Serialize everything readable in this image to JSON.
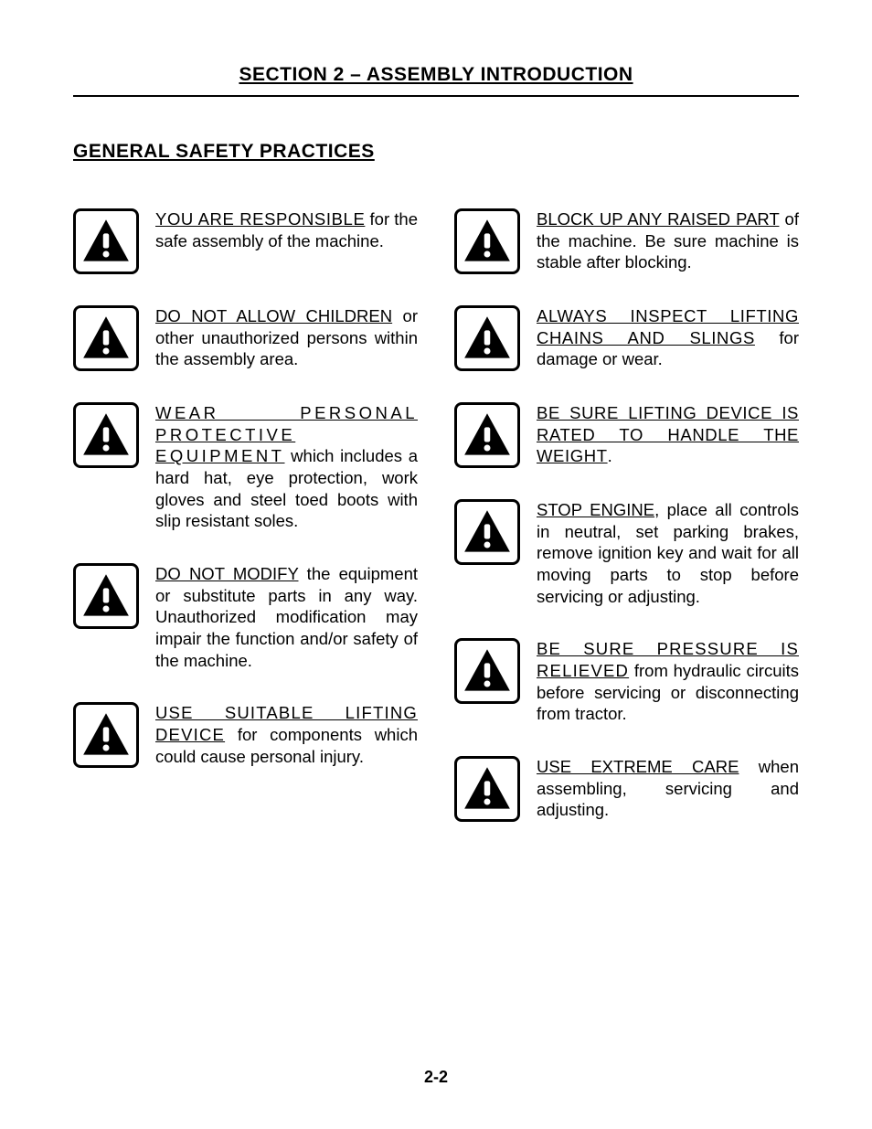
{
  "header": {
    "section_title": "SECTION 2 – ASSEMBLY INTRODUCTION",
    "subheading": "GENERAL SAFETY PRACTICES"
  },
  "footer": {
    "page_number": "2-2"
  },
  "colors": {
    "icon_fill": "#000000",
    "icon_border": "#000000",
    "background": "#ffffff",
    "text": "#000000"
  },
  "icon": {
    "name": "warning-triangle-exclamation"
  },
  "left_items": [
    {
      "lead": "YOU ARE RESPONSIBLE",
      "lead_ls": "ls-sm",
      "rest": " for the safe assembly of the machine."
    },
    {
      "lead": "DO NOT ALLOW CHILDREN",
      "lead_ls": "",
      "rest": " or other unauthorized persons within the assembly area."
    },
    {
      "lead": "WEAR PERSONAL PROTECTIVE EQUIPMENT",
      "lead_ls": "ls-wide",
      "rest": " which includes a hard hat, eye protection, work gloves and steel toed boots with slip resistant soles."
    },
    {
      "lead": "DO NOT MODIFY",
      "lead_ls": "",
      "rest": " the equipment or substitute parts in any way. Unauthorized modification may impair the function and/or safety of the machine."
    },
    {
      "lead": "USE SUITABLE LIFTING DEVICE",
      "lead_ls": "ls-med",
      "rest": " for components which could cause personal injury."
    }
  ],
  "right_items": [
    {
      "lead": "BLOCK UP ANY RAISED PART",
      "lead_ls": "",
      "rest": " of the machine. Be sure machine is stable after blocking."
    },
    {
      "lead": "ALWAYS INSPECT LIFTING CHAINS AND SLINGS",
      "lead_ls": "ls-sm",
      "rest": " for damage or wear."
    },
    {
      "lead": "BE SURE LIFTING DEVICE IS RATED TO HANDLE THE WEIGHT",
      "lead_ls": "ls-sm",
      "rest": "."
    },
    {
      "lead": "STOP ENGINE",
      "lead_ls": "",
      "rest": ", place all controls in neutral, set parking brakes, remove ignition key and wait for all moving parts to stop before servicing or adjusting."
    },
    {
      "lead": "BE SURE PRESSURE IS RELIEVED",
      "lead_ls": "ls-med",
      "rest": " from hydraulic circuits before servicing or disconnecting from tractor."
    },
    {
      "lead": "USE EXTREME CARE",
      "lead_ls": "",
      "rest": " when assembling, servicing and adjusting."
    }
  ]
}
